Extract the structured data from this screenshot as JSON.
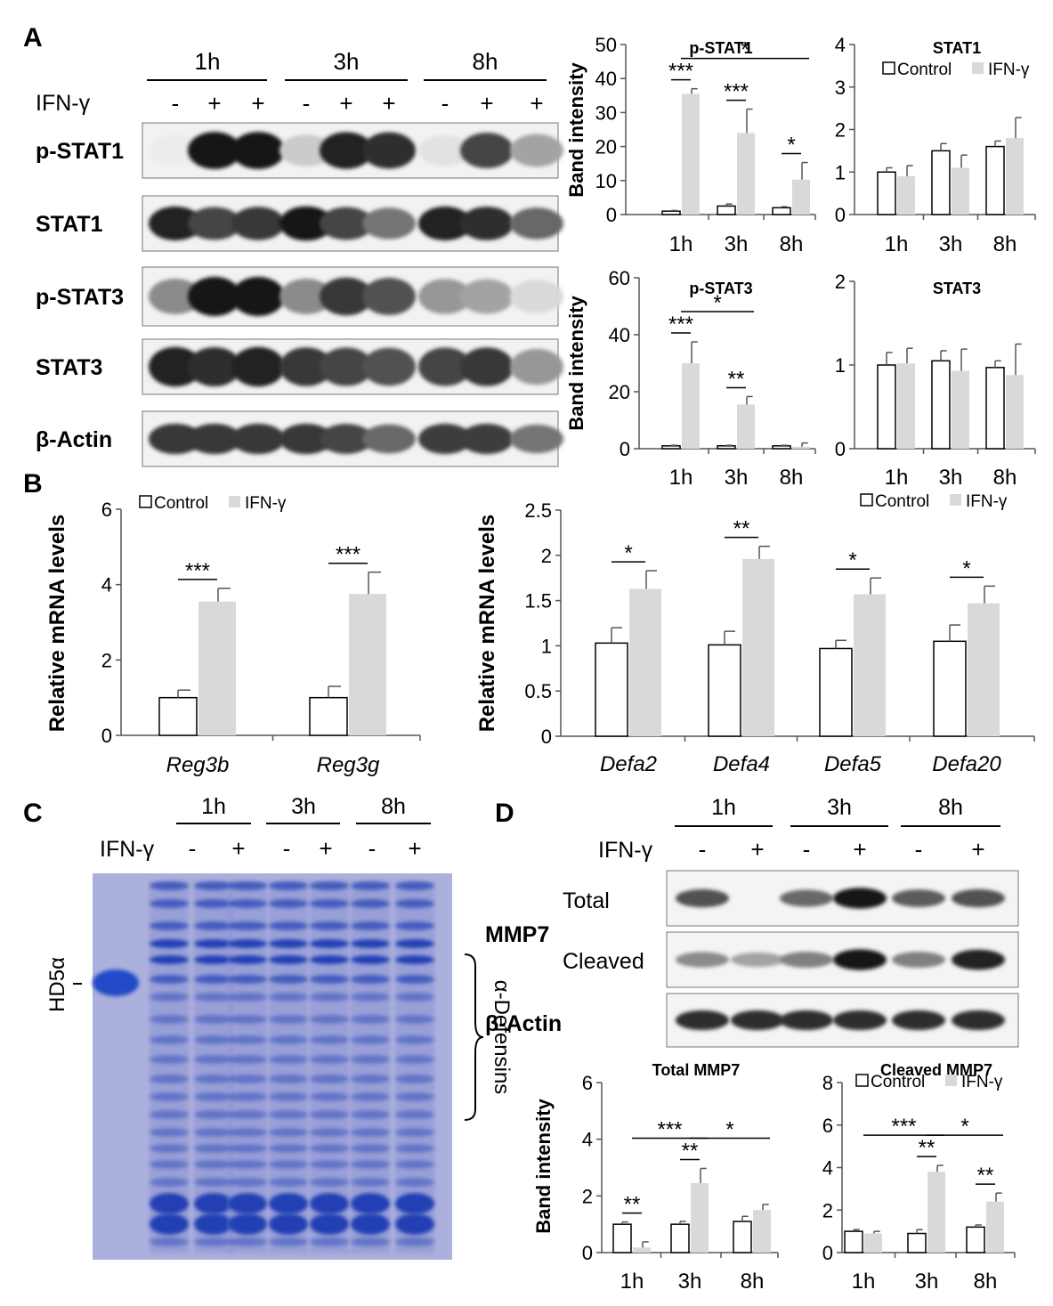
{
  "panels": {
    "a": "A",
    "b": "B",
    "c": "C",
    "d": "D"
  },
  "blot_a": {
    "times": [
      "1h",
      "3h",
      "8h"
    ],
    "ifn_label": "IFN-γ",
    "signs": [
      "-",
      "+",
      "+",
      "-",
      "+",
      "+",
      "-",
      "+",
      "+"
    ],
    "rows": [
      "p-STAT1",
      "STAT1",
      "p-STAT3",
      "STAT3",
      "β-Actin"
    ]
  },
  "blot_c": {
    "times": [
      "1h",
      "3h",
      "8h"
    ],
    "ifn_label": "IFN-γ",
    "signs": [
      "-",
      "+",
      "-",
      "+",
      "-",
      "+"
    ],
    "marker_label": "HD5α",
    "bracket_label": "α-Defensins"
  },
  "blot_d": {
    "times": [
      "1h",
      "3h",
      "8h"
    ],
    "ifn_label": "IFN-γ",
    "signs": [
      "-",
      "+",
      "-",
      "+",
      "-",
      "+"
    ],
    "protein_label": "MMP7",
    "rows": [
      "Total",
      "Cleaved",
      "β-Actin"
    ]
  },
  "colors": {
    "control": "#ffffff",
    "ifn": "#d9d9d9",
    "band": "#111111",
    "gel_bg": "#a9aedb",
    "gel_band": "#1f3fb3"
  },
  "chart_data": [
    {
      "id": "pstat1",
      "type": "bar",
      "title": "p-STAT1",
      "ylabel": "Band intensity",
      "ylim": [
        0,
        50
      ],
      "yticks": [
        0,
        10,
        20,
        30,
        40,
        50
      ],
      "categories": [
        "1h",
        "3h",
        "8h"
      ],
      "italic_categories": false,
      "series": [
        {
          "values": [
            1,
            2.5,
            2
          ],
          "errors": [
            0.2,
            0.6,
            0.3
          ]
        },
        {
          "values": [
            35.5,
            24,
            10.3
          ],
          "errors": [
            1.5,
            7,
            5
          ]
        }
      ],
      "annotations": [
        {
          "text": "***",
          "bar": 0
        },
        {
          "text": "***",
          "bar": 1
        },
        {
          "text": "*",
          "bar": 2
        },
        {
          "text": "*",
          "bracket": [
            0,
            2
          ]
        }
      ]
    },
    {
      "id": "stat1",
      "type": "bar",
      "title": "STAT1",
      "ylabel": "",
      "ylim": [
        0,
        4
      ],
      "yticks": [
        0,
        1,
        2,
        3,
        4
      ],
      "categories": [
        "1h",
        "3h",
        "8h"
      ],
      "italic_categories": false,
      "legend": {
        "position": "top",
        "labels": [
          "Control",
          "IFN-γ"
        ]
      },
      "series": [
        {
          "values": [
            1,
            1.5,
            1.6
          ],
          "errors": [
            0.1,
            0.17,
            0.13
          ]
        },
        {
          "values": [
            0.9,
            1.1,
            1.8
          ],
          "errors": [
            0.25,
            0.3,
            0.48
          ]
        }
      ],
      "annotations": []
    },
    {
      "id": "pstat3",
      "type": "bar",
      "title": "p-STAT3",
      "ylabel": "Band intensity",
      "ylim": [
        0,
        60
      ],
      "yticks": [
        0,
        20,
        40,
        60
      ],
      "categories": [
        "1h",
        "3h",
        "8h"
      ],
      "italic_categories": false,
      "series": [
        {
          "values": [
            1,
            1,
            1
          ],
          "errors": [
            0.2,
            0.2,
            0.2
          ]
        },
        {
          "values": [
            30,
            15.5,
            0.7
          ],
          "errors": [
            7.5,
            2.8,
            1.3
          ]
        }
      ],
      "annotations": [
        {
          "text": "***",
          "bar": 0
        },
        {
          "text": "**",
          "bar": 1
        },
        {
          "text": "*",
          "bracket": [
            0,
            1
          ]
        }
      ]
    },
    {
      "id": "stat3",
      "type": "bar",
      "title": "STAT3",
      "ylabel": "",
      "ylim": [
        0,
        2
      ],
      "yticks": [
        0,
        1,
        2
      ],
      "categories": [
        "1h",
        "3h",
        "8h"
      ],
      "italic_categories": false,
      "series": [
        {
          "values": [
            1,
            1.05,
            0.97
          ],
          "errors": [
            0.15,
            0.12,
            0.08
          ]
        },
        {
          "values": [
            1.02,
            0.93,
            0.88
          ],
          "errors": [
            0.18,
            0.26,
            0.37
          ]
        }
      ],
      "annotations": []
    },
    {
      "id": "reg",
      "type": "bar",
      "title": "",
      "ylabel": "Relative mRNA levels",
      "ylim": [
        0,
        6
      ],
      "yticks": [
        0,
        2,
        4,
        6
      ],
      "categories": [
        "Reg3b",
        "Reg3g"
      ],
      "italic_categories": true,
      "legend": {
        "position": "top-left",
        "labels": [
          "Control",
          "IFN-γ"
        ]
      },
      "series": [
        {
          "values": [
            1,
            1
          ],
          "errors": [
            0.2,
            0.3
          ]
        },
        {
          "values": [
            3.55,
            3.75
          ],
          "errors": [
            0.35,
            0.58
          ]
        }
      ],
      "annotations": [
        {
          "text": "***",
          "bar": 0
        },
        {
          "text": "***",
          "bar": 1
        }
      ]
    },
    {
      "id": "defa",
      "type": "bar",
      "title": "",
      "ylabel": "Relative mRNA levels",
      "ylim": [
        0,
        2.5
      ],
      "yticks": [
        0,
        0.5,
        1,
        1.5,
        2,
        2.5
      ],
      "categories": [
        "Defa2",
        "Defa4",
        "Defa5",
        "Defa20"
      ],
      "italic_categories": true,
      "legend": {
        "position": "top-right",
        "labels": [
          "Control",
          "IFN-γ"
        ]
      },
      "series": [
        {
          "values": [
            1.03,
            1.01,
            0.97,
            1.05
          ],
          "errors": [
            0.17,
            0.15,
            0.09,
            0.18
          ]
        },
        {
          "values": [
            1.63,
            1.96,
            1.57,
            1.47
          ],
          "errors": [
            0.2,
            0.14,
            0.18,
            0.19
          ]
        }
      ],
      "annotations": [
        {
          "text": "*",
          "bar": 0
        },
        {
          "text": "**",
          "bar": 1
        },
        {
          "text": "*",
          "bar": 2
        },
        {
          "text": "*",
          "bar": 3
        }
      ]
    },
    {
      "id": "total_mmp7",
      "type": "bar",
      "title": "Total MMP7",
      "ylabel": "Band intensity",
      "ylim": [
        0,
        6
      ],
      "yticks": [
        0,
        2,
        4,
        6
      ],
      "categories": [
        "1h",
        "3h",
        "8h"
      ],
      "italic_categories": false,
      "series": [
        {
          "values": [
            1,
            1,
            1.1
          ],
          "errors": [
            0.08,
            0.1,
            0.18
          ]
        },
        {
          "values": [
            0.18,
            2.45,
            1.5
          ],
          "errors": [
            0.2,
            0.52,
            0.2
          ]
        }
      ],
      "annotations": [
        {
          "text": "**",
          "bar": 0
        },
        {
          "text": "**",
          "bar": 1
        },
        {
          "text": "***",
          "bracket": [
            0,
            1
          ]
        },
        {
          "text": "*",
          "bracket": [
            1,
            2
          ]
        }
      ]
    },
    {
      "id": "cleaved_mmp7",
      "type": "bar",
      "title": "Cleaved MMP7",
      "ylabel": "",
      "ylim": [
        0,
        8
      ],
      "yticks": [
        0,
        2,
        4,
        6,
        8
      ],
      "categories": [
        "1h",
        "3h",
        "8h"
      ],
      "italic_categories": false,
      "legend": {
        "position": "top",
        "labels": [
          "Control",
          "IFN-γ"
        ]
      },
      "series": [
        {
          "values": [
            1,
            0.9,
            1.2
          ],
          "errors": [
            0.08,
            0.18,
            0.1
          ]
        },
        {
          "values": [
            0.9,
            3.8,
            2.4
          ],
          "errors": [
            0.1,
            0.3,
            0.4
          ]
        }
      ],
      "annotations": [
        {
          "text": "**",
          "bar": 1
        },
        {
          "text": "**",
          "bar": 2
        },
        {
          "text": "***",
          "bracket": [
            0,
            1
          ]
        },
        {
          "text": "*",
          "bracket": [
            1,
            2
          ]
        }
      ]
    }
  ]
}
